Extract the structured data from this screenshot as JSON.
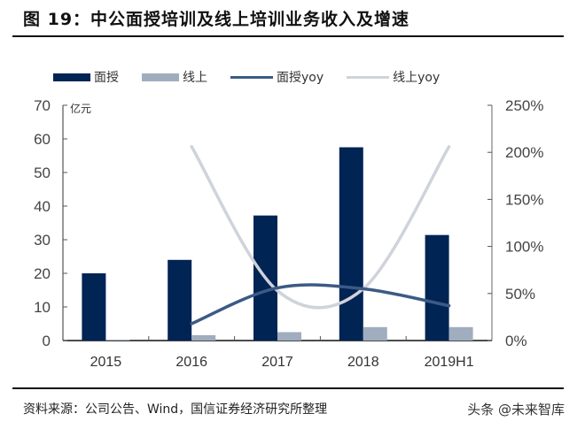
{
  "header": {
    "title": "图 19：中公面授培训及线上培训业务收入及增速"
  },
  "legend": {
    "items": [
      {
        "label": "面授",
        "kind": "bar",
        "color": "#002454"
      },
      {
        "label": "线上",
        "kind": "bar",
        "color": "#9fadbf"
      },
      {
        "label": "面授yoy",
        "kind": "line",
        "color": "#3c5a86"
      },
      {
        "label": "线上yoy",
        "kind": "line",
        "color": "#cfd3da"
      }
    ]
  },
  "axes": {
    "left_unit": "亿元",
    "left_ticks": [
      "0",
      "10",
      "20",
      "30",
      "40",
      "50",
      "60",
      "70"
    ],
    "right_ticks": [
      "0%",
      "50%",
      "100%",
      "150%",
      "200%",
      "250%"
    ],
    "x_ticks": [
      "2015",
      "2016",
      "2017",
      "2018",
      "2019H1"
    ]
  },
  "footer": {
    "source": "资料来源：公司公告、Wind，国信证券经济研究所整理",
    "watermark": "头条 @未来智库"
  },
  "chart_data": {
    "type": "bar",
    "title": "图 19：中公面授培训及线上培训业务收入及增速",
    "categories": [
      "2015",
      "2016",
      "2017",
      "2018",
      "2019H1"
    ],
    "xlabel": "",
    "ylabel": "亿元",
    "ylim": [
      0,
      70
    ],
    "y2lim": [
      0,
      250
    ],
    "y2label": "%",
    "grid": false,
    "legend_position": "top",
    "series": [
      {
        "name": "面授",
        "type": "bar",
        "axis": "left",
        "color": "#002454",
        "values": [
          20.0,
          24.0,
          37.2,
          57.5,
          31.4
        ]
      },
      {
        "name": "线上",
        "type": "bar",
        "axis": "left",
        "color": "#9fadbf",
        "values": [
          0.2,
          1.6,
          2.5,
          4.0,
          4.0
        ]
      },
      {
        "name": "面授yoy",
        "type": "line",
        "axis": "right",
        "color": "#3c5a86",
        "values": [
          null,
          18,
          56,
          55,
          37
        ]
      },
      {
        "name": "线上yoy",
        "type": "line",
        "axis": "right",
        "color": "#cfd3da",
        "values": [
          null,
          206,
          53,
          55,
          206
        ]
      }
    ]
  }
}
